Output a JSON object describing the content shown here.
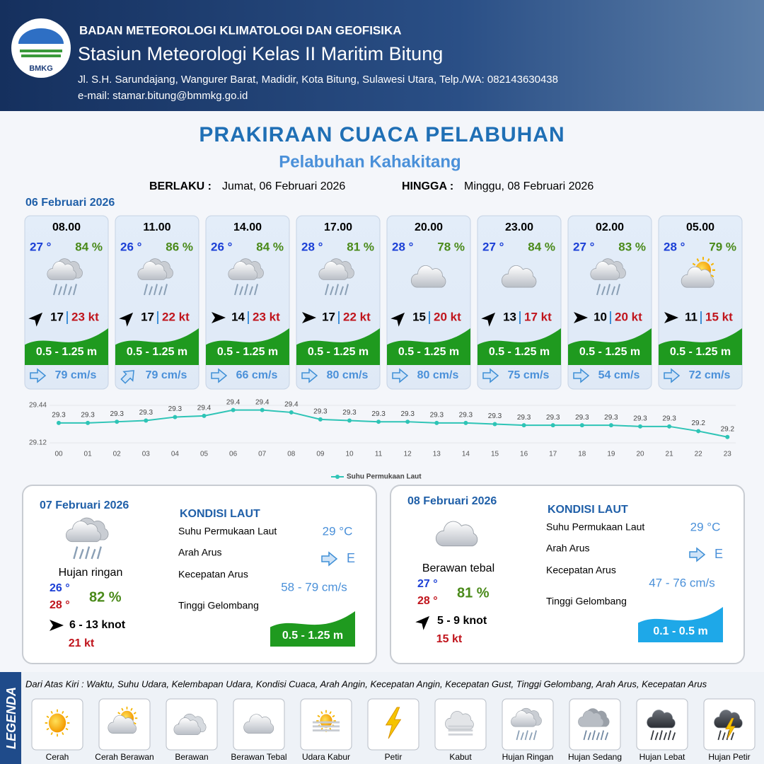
{
  "header": {
    "logo_text": "BMKG",
    "agency": "BADAN METEOROLOGI KLIMATOLOGI DAN GEOFISIKA",
    "station": "Stasiun Meteorologi Kelas II Maritim Bitung",
    "address": "Jl. S.H. Sarundajang, Wangurer Barat, Madidir, Kota Bitung, Sulawesi Utara, Telp./WA: 082143630438",
    "email": "e-mail: stamar.bitung@bmmkg.go.id"
  },
  "title": "PRAKIRAAN CUACA PELABUHAN",
  "subtitle": "Pelabuhan Kahakitang",
  "validity": {
    "from_label": "BERLAKU :",
    "from": "Jumat, 06 Februari 2026",
    "to_label": "HINGGA :",
    "to": "Minggu, 08 Februari 2026"
  },
  "day1_date": "06 Februari 2026",
  "slots": [
    {
      "time": "08.00",
      "temp": "27 °",
      "humidity": "84 %",
      "wind": "17",
      "gust": "23 kt",
      "wave": "0.5 - 1.25 m",
      "current": "79 cm/s"
    },
    {
      "time": "11.00",
      "temp": "26 °",
      "humidity": "86 %",
      "wind": "17",
      "gust": "22 kt",
      "wave": "0.5 - 1.25 m",
      "current": "79 cm/s"
    },
    {
      "time": "14.00",
      "temp": "26 °",
      "humidity": "84 %",
      "wind": "14",
      "gust": "23 kt",
      "wave": "0.5 - 1.25 m",
      "current": "66 cm/s"
    },
    {
      "time": "17.00",
      "temp": "28 °",
      "humidity": "81 %",
      "wind": "17",
      "gust": "22 kt",
      "wave": "0.5 - 1.25 m",
      "current": "80 cm/s"
    },
    {
      "time": "20.00",
      "temp": "28 °",
      "humidity": "78 %",
      "wind": "15",
      "gust": "20 kt",
      "wave": "0.5 - 1.25 m",
      "current": "80 cm/s"
    },
    {
      "time": "23.00",
      "temp": "27 °",
      "humidity": "84 %",
      "wind": "13",
      "gust": "17 kt",
      "wave": "0.5 - 1.25 m",
      "current": "75 cm/s"
    },
    {
      "time": "02.00",
      "temp": "27 °",
      "humidity": "83 %",
      "wind": "10",
      "gust": "20 kt",
      "wave": "0.5 - 1.25 m",
      "current": "54 cm/s"
    },
    {
      "time": "05.00",
      "temp": "28 °",
      "humidity": "79 %",
      "wind": "11",
      "gust": "15 kt",
      "wave": "0.5 - 1.25 m",
      "current": "72 cm/s"
    }
  ],
  "chart_data": {
    "type": "line",
    "x": [
      "00",
      "01",
      "02",
      "03",
      "04",
      "05",
      "06",
      "07",
      "08",
      "09",
      "10",
      "11",
      "12",
      "13",
      "14",
      "15",
      "16",
      "17",
      "18",
      "19",
      "20",
      "21",
      "22",
      "23"
    ],
    "series": [
      {
        "name": "Suhu Permukaan Laut",
        "color": "#2ec4b6",
        "values": [
          29.29,
          29.29,
          29.3,
          29.31,
          29.34,
          29.35,
          29.4,
          29.4,
          29.38,
          29.32,
          29.31,
          29.3,
          29.3,
          29.29,
          29.29,
          29.28,
          29.27,
          29.27,
          29.27,
          29.27,
          29.26,
          29.26,
          29.22,
          29.17
        ],
        "value_labels": [
          "29.3",
          "29.3",
          "29.3",
          "29.3",
          "29.3",
          "29.4",
          "29.4",
          "29.4",
          "29.4",
          "29.3",
          "29.3",
          "29.3",
          "29.3",
          "29.3",
          "29.3",
          "29.3",
          "29.3",
          "29.3",
          "29.3",
          "29.3",
          "29.3",
          "29.3",
          "29.2",
          "29.2"
        ]
      }
    ],
    "ylim": [
      29.12,
      29.44
    ],
    "yticks": [
      29.12,
      29.44
    ]
  },
  "day_forecasts": [
    {
      "date": "07 Februari 2026",
      "weather": "Hujan ringan",
      "temp_min": "26 °",
      "temp_max": "28 °",
      "humidity": "82 %",
      "wind": "6  - 13 knot",
      "gust": "21 kt",
      "sea_title": "KONDISI LAUT",
      "labels": [
        "Suhu Permukaan Laut",
        "Arah Arus",
        "Kecepatan Arus",
        "Tinggi Gelombang"
      ],
      "sst": "29 °C",
      "current_dir": "E",
      "current_speed": "58 - 79 cm/s",
      "wave": "0.5 - 1.25 m"
    },
    {
      "date": "08 Februari 2026",
      "weather": "Berawan tebal",
      "temp_min": "27 °",
      "temp_max": "28 °",
      "humidity": "81 %",
      "wind": "5  - 9 knot",
      "gust": "15 kt",
      "sea_title": "KONDISI LAUT",
      "labels": [
        "Suhu Permukaan Laut",
        "Arah Arus",
        "Kecepatan Arus",
        "Tinggi Gelombang"
      ],
      "sst": "29 °C",
      "current_dir": "E",
      "current_speed": "47 - 76 cm/s",
      "wave": "0.1 - 0.5 m"
    }
  ],
  "legend": {
    "title": "LEGENDA",
    "description": "Dari Atas Kiri : Waktu, Suhu Udara, Kelembapan Udara, Kondisi Cuaca, Arah Angin, Kecepatan Angin, Kecepatan Gust, Tinggi Gelombang, Arah Arus, Kecepatan Arus",
    "items": [
      "Cerah",
      "Cerah Berawan",
      "Berawan",
      "Berawan Tebal",
      "Udara Kabur",
      "Petir",
      "Kabut",
      "Hujan Ringan",
      "Hujan Sedang",
      "Hujan Lebat",
      "Hujan Petir"
    ]
  }
}
